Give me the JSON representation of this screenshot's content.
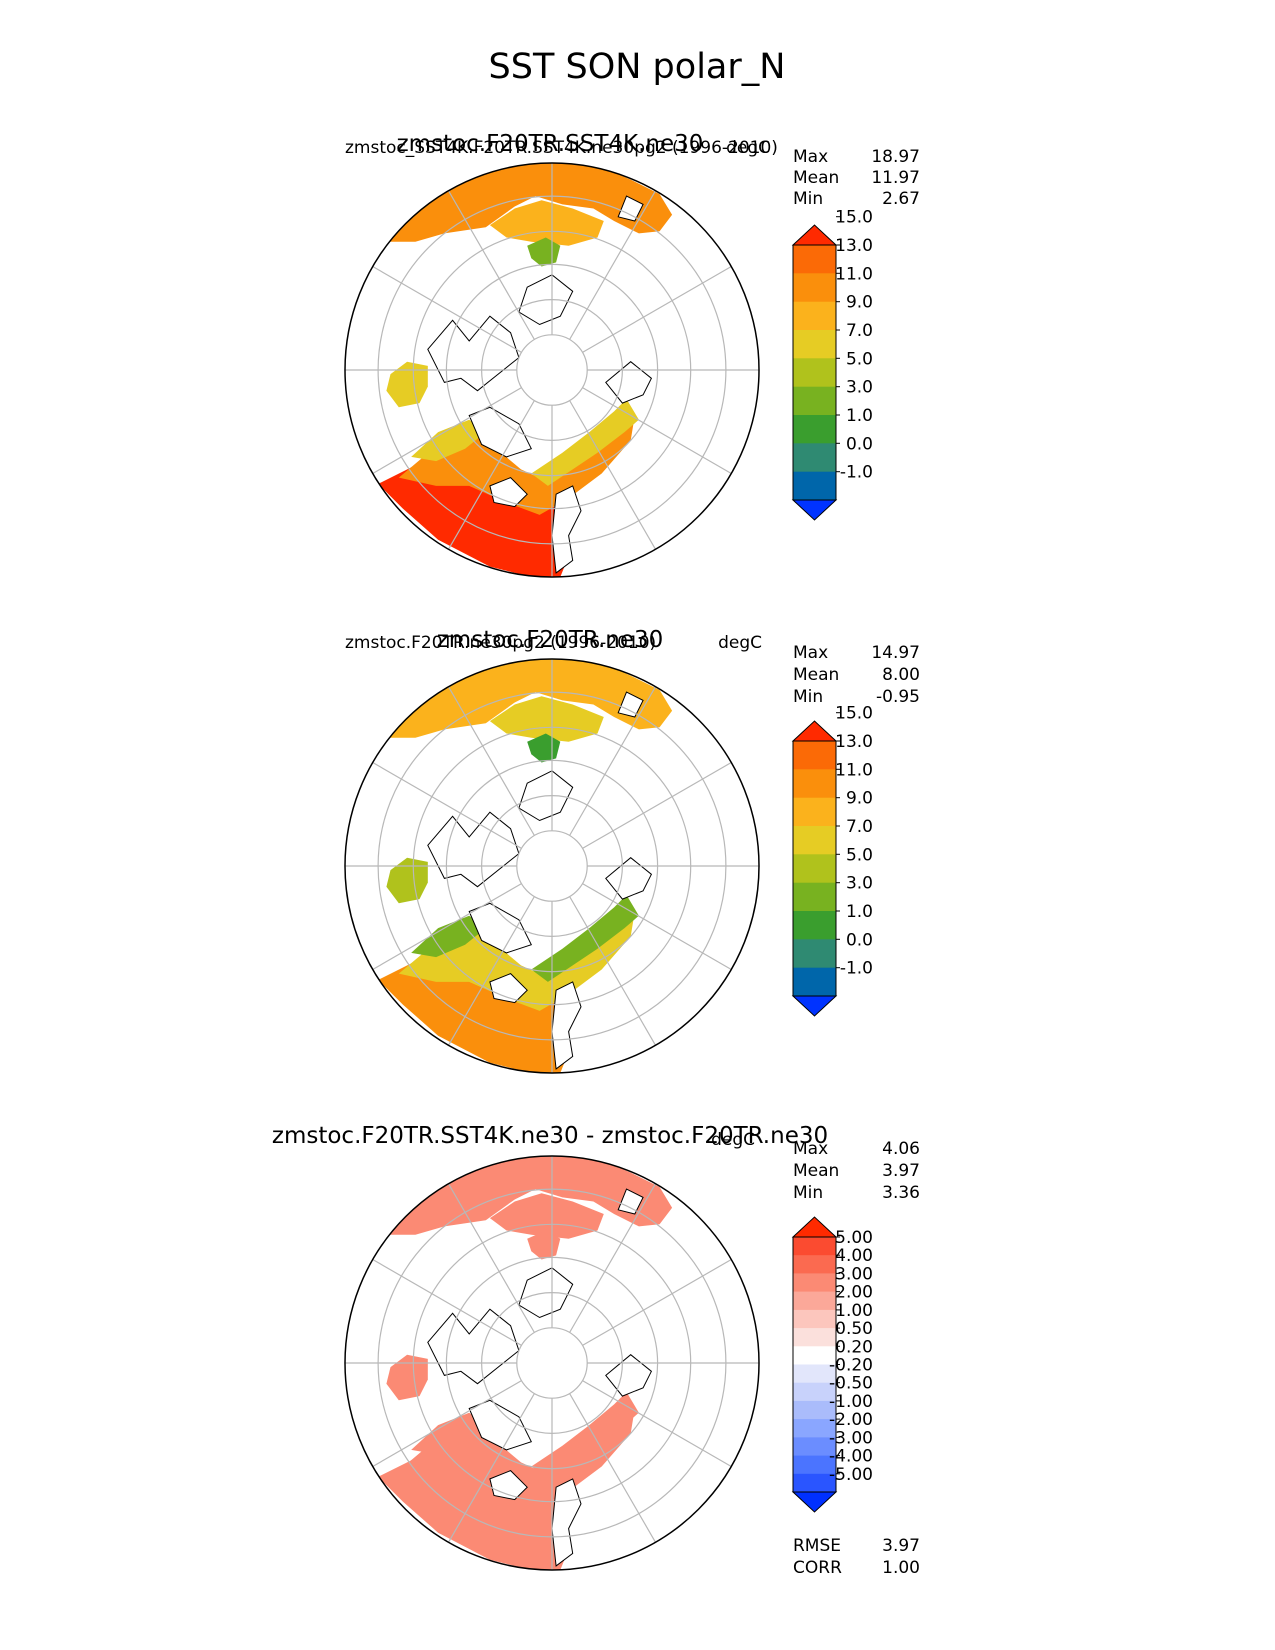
{
  "figure": {
    "title": "SST SON polar_N"
  },
  "colors": {
    "abs_levels": [
      "#0033ff",
      "#0066aa",
      "#2f8a72",
      "#3a9e2e",
      "#78b220",
      "#b0c21c",
      "#e6cc24",
      "#fbb21c",
      "#fa8f0c",
      "#fb6a06",
      "#ff2a00"
    ],
    "diff_levels": [
      "#0030ff",
      "#2a55ff",
      "#4b74ff",
      "#6b8dff",
      "#8aa6ff",
      "#aabcfb",
      "#c8d2fb",
      "#e2e6fb",
      "#ffffff",
      "#fbe0dc",
      "#fcc6bd",
      "#fba899",
      "#fb8a74",
      "#fb6a50",
      "#fb4b30",
      "#ff2a00"
    ]
  },
  "chart_data": [
    {
      "type": "heatmap",
      "projection": "north polar stereographic",
      "field": "SST",
      "season": "SON",
      "title_center": "zmstoc.F20TR.SST4K.ne30",
      "title_left": "zmstoc_SST4K.F20TR.SST4K.ne30pg2 (1996-2010)",
      "title_right": "degC",
      "stats": [
        {
          "label": "Max",
          "value": "18.97"
        },
        {
          "label": "Mean",
          "value": "11.97"
        },
        {
          "label": "Min",
          "value": "2.67"
        }
      ],
      "colorbar": {
        "levels": [
          "-1.0",
          "0.0",
          "1.0",
          "3.0",
          "5.0",
          "7.0",
          "9.0",
          "11.0",
          "13.0",
          "15.0"
        ],
        "extend": "both"
      },
      "region_values": {
        "atlantic": 15.0,
        "atlantic_north": 11.0,
        "nordic": 7.0,
        "pacific": 12.5,
        "pacific_north": 10.5,
        "bering": 4.0,
        "hudson": 8.0
      }
    },
    {
      "type": "heatmap",
      "projection": "north polar stereographic",
      "field": "SST",
      "season": "SON",
      "title_center": "zmstoc.F20TR.ne30",
      "title_left": "zmstoc.F20TR.ne30pg2 (1996-2010)",
      "title_right": "degC",
      "stats": [
        {
          "label": "Max",
          "value": "14.97"
        },
        {
          "label": "Mean",
          "value": "8.00"
        },
        {
          "label": "Min",
          "value": "-0.95"
        }
      ],
      "colorbar": {
        "levels": [
          "-1.0",
          "0.0",
          "1.0",
          "3.0",
          "5.0",
          "7.0",
          "9.0",
          "11.0",
          "13.0",
          "15.0"
        ],
        "extend": "both"
      },
      "region_values": {
        "atlantic": 11.0,
        "atlantic_north": 8.0,
        "nordic": 4.0,
        "pacific": 9.5,
        "pacific_north": 7.5,
        "bering": 2.0,
        "hudson": 5.0
      }
    },
    {
      "type": "heatmap",
      "projection": "north polar stereographic",
      "field": "SST difference",
      "season": "SON",
      "title_center": "zmstoc.F20TR.SST4K.ne30 - zmstoc.F20TR.ne30",
      "title_right": "degC",
      "stats": [
        {
          "label": "Max",
          "value": "4.06"
        },
        {
          "label": "Mean",
          "value": "3.97"
        },
        {
          "label": "Min",
          "value": "3.36"
        }
      ],
      "colorbar": {
        "levels": [
          "-5.00",
          "-4.00",
          "-3.00",
          "-2.00",
          "-1.00",
          "-0.50",
          "-0.20",
          "0.20",
          "0.50",
          "1.00",
          "2.00",
          "3.00",
          "4.00",
          "5.00"
        ],
        "extend": "both"
      },
      "region_values": {
        "atlantic": 3.97,
        "atlantic_north": 3.97,
        "nordic": 3.97,
        "pacific": 3.97,
        "pacific_north": 3.97,
        "bering": 3.97,
        "hudson": 3.97
      },
      "metrics": [
        {
          "label": "RMSE",
          "value": "3.97"
        },
        {
          "label": "CORR",
          "value": "1.00"
        }
      ]
    }
  ]
}
